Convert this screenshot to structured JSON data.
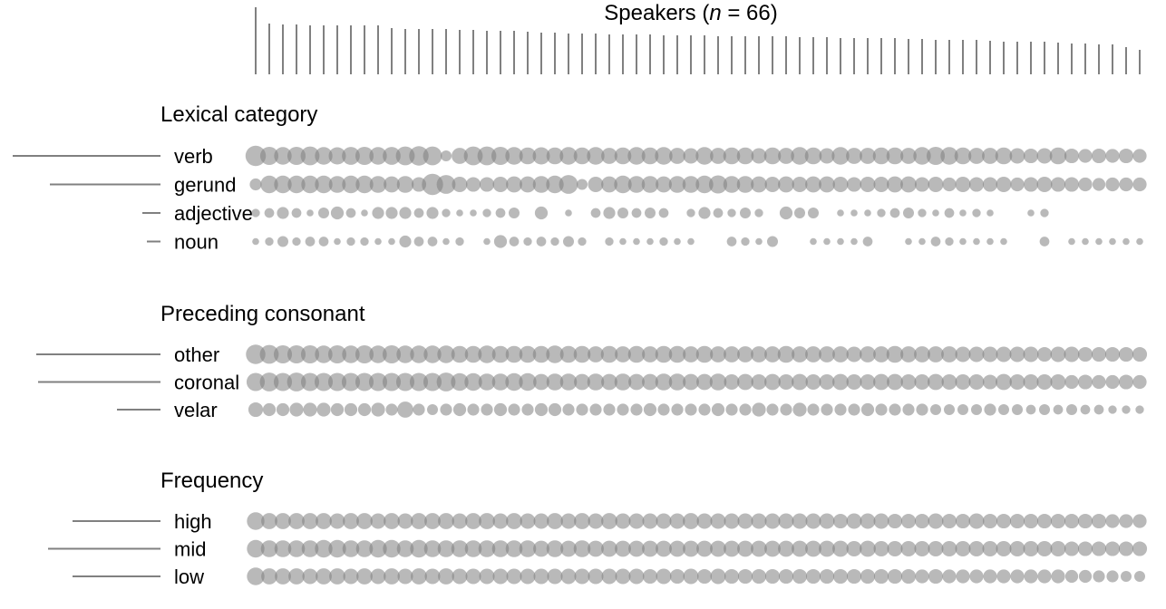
{
  "chart_data": {
    "type": "bubble-matrix",
    "title": "Speakers (n = 66)",
    "speaker_count": 66,
    "speaker_token_counts": [
      74,
      56,
      55,
      55,
      54,
      54,
      54,
      54,
      54,
      54,
      51,
      50,
      50,
      50,
      50,
      49,
      49,
      48,
      48,
      48,
      47,
      46,
      46,
      45,
      45,
      45,
      44,
      44,
      44,
      44,
      43,
      43,
      43,
      43,
      42,
      42,
      42,
      42,
      42,
      42,
      41,
      41,
      41,
      40,
      40,
      40,
      40,
      40,
      39,
      39,
      38,
      38,
      38,
      38,
      37,
      36,
      36,
      36,
      36,
      35,
      34,
      34,
      33,
      33,
      30,
      27
    ],
    "groups": [
      {
        "name": "Lexical category",
        "levels": [
          {
            "label": "verb",
            "total": 163,
            "values": [
              0.35,
              0.28,
              0.26,
              0.28,
              0.3,
              0.26,
              0.25,
              0.27,
              0.28,
              0.26,
              0.27,
              0.3,
              0.32,
              0.3,
              0.1,
              0.22,
              0.3,
              0.3,
              0.28,
              0.26,
              0.24,
              0.25,
              0.24,
              0.26,
              0.24,
              0.26,
              0.22,
              0.24,
              0.26,
              0.24,
              0.26,
              0.22,
              0.2,
              0.26,
              0.22,
              0.24,
              0.24,
              0.2,
              0.24,
              0.22,
              0.26,
              0.24,
              0.2,
              0.26,
              0.22,
              0.22,
              0.24,
              0.24,
              0.22,
              0.26,
              0.28,
              0.26,
              0.24,
              0.22,
              0.22,
              0.24,
              0.2,
              0.18,
              0.2,
              0.24,
              0.18,
              0.16,
              0.18,
              0.16,
              0.18,
              0.16
            ]
          },
          {
            "label": "gerund",
            "total": 122,
            "values": [
              0.12,
              0.26,
              0.26,
              0.26,
              0.26,
              0.26,
              0.24,
              0.26,
              0.26,
              0.24,
              0.22,
              0.24,
              0.18,
              0.38,
              0.3,
              0.2,
              0.18,
              0.18,
              0.2,
              0.22,
              0.22,
              0.24,
              0.26,
              0.3,
              0.1,
              0.2,
              0.22,
              0.26,
              0.24,
              0.24,
              0.22,
              0.24,
              0.24,
              0.26,
              0.28,
              0.24,
              0.24,
              0.22,
              0.2,
              0.22,
              0.2,
              0.22,
              0.22,
              0.2,
              0.18,
              0.2,
              0.2,
              0.22,
              0.22,
              0.18,
              0.2,
              0.16,
              0.2,
              0.18,
              0.18,
              0.2,
              0.16,
              0.18,
              0.2,
              0.18,
              0.18,
              0.16,
              0.14,
              0.16,
              0.16,
              0.16
            ]
          },
          {
            "label": "adjective",
            "total": 20,
            "values": [
              0.06,
              0.08,
              0.12,
              0.08,
              0.04,
              0.1,
              0.14,
              0.08,
              0.04,
              0.12,
              0.12,
              0.12,
              0.08,
              0.12,
              0.06,
              0.04,
              0.04,
              0.06,
              0.08,
              0.1,
              0.0,
              0.14,
              0.0,
              0.04,
              0.0,
              0.08,
              0.12,
              0.1,
              0.08,
              0.1,
              0.08,
              0.0,
              0.06,
              0.12,
              0.08,
              0.06,
              0.1,
              0.06,
              0.0,
              0.14,
              0.1,
              0.1,
              0.0,
              0.04,
              0.04,
              0.04,
              0.06,
              0.08,
              0.1,
              0.06,
              0.04,
              0.08,
              0.04,
              0.06,
              0.04,
              0.0,
              0.0,
              0.04,
              0.06,
              0.0,
              0.0,
              0.0,
              0.0,
              0.0,
              0.0,
              0.0
            ]
          },
          {
            "label": "noun",
            "total": 15,
            "values": [
              0.04,
              0.06,
              0.1,
              0.06,
              0.08,
              0.08,
              0.04,
              0.06,
              0.06,
              0.04,
              0.04,
              0.12,
              0.08,
              0.08,
              0.04,
              0.06,
              0.0,
              0.04,
              0.14,
              0.08,
              0.06,
              0.08,
              0.06,
              0.1,
              0.06,
              0.0,
              0.06,
              0.04,
              0.04,
              0.04,
              0.06,
              0.04,
              0.04,
              0.0,
              0.0,
              0.08,
              0.06,
              0.04,
              0.1,
              0.0,
              0.0,
              0.04,
              0.04,
              0.04,
              0.04,
              0.08,
              0.0,
              0.0,
              0.04,
              0.04,
              0.08,
              0.06,
              0.04,
              0.04,
              0.04,
              0.04,
              0.0,
              0.0,
              0.08,
              0.0,
              0.04,
              0.04,
              0.04,
              0.04,
              0.04,
              0.04
            ]
          }
        ]
      },
      {
        "name": "Preceding consonant",
        "levels": [
          {
            "label": "other",
            "total": 137,
            "values": [
              0.32,
              0.3,
              0.28,
              0.28,
              0.28,
              0.26,
              0.28,
              0.26,
              0.28,
              0.26,
              0.28,
              0.26,
              0.26,
              0.26,
              0.26,
              0.24,
              0.24,
              0.26,
              0.24,
              0.24,
              0.24,
              0.24,
              0.26,
              0.24,
              0.24,
              0.22,
              0.24,
              0.22,
              0.24,
              0.22,
              0.24,
              0.24,
              0.22,
              0.24,
              0.22,
              0.22,
              0.22,
              0.22,
              0.22,
              0.24,
              0.22,
              0.22,
              0.22,
              0.22,
              0.2,
              0.22,
              0.22,
              0.24,
              0.22,
              0.22,
              0.22,
              0.22,
              0.2,
              0.2,
              0.2,
              0.2,
              0.2,
              0.2,
              0.18,
              0.2,
              0.2,
              0.18,
              0.18,
              0.18,
              0.18,
              0.18
            ]
          },
          {
            "label": "coronal",
            "total": 135,
            "values": [
              0.28,
              0.3,
              0.28,
              0.3,
              0.28,
              0.28,
              0.28,
              0.28,
              0.28,
              0.28,
              0.28,
              0.28,
              0.28,
              0.28,
              0.3,
              0.26,
              0.26,
              0.24,
              0.24,
              0.26,
              0.26,
              0.22,
              0.24,
              0.24,
              0.22,
              0.24,
              0.22,
              0.24,
              0.22,
              0.22,
              0.24,
              0.24,
              0.22,
              0.22,
              0.24,
              0.2,
              0.22,
              0.2,
              0.22,
              0.2,
              0.22,
              0.2,
              0.2,
              0.22,
              0.2,
              0.2,
              0.22,
              0.22,
              0.2,
              0.2,
              0.22,
              0.2,
              0.2,
              0.2,
              0.18,
              0.22,
              0.2,
              0.2,
              0.2,
              0.2,
              0.16,
              0.18,
              0.16,
              0.16,
              0.18,
              0.16
            ]
          },
          {
            "label": "velar",
            "total": 48,
            "values": [
              0.18,
              0.14,
              0.14,
              0.16,
              0.16,
              0.16,
              0.14,
              0.14,
              0.14,
              0.16,
              0.12,
              0.22,
              0.12,
              0.1,
              0.12,
              0.14,
              0.12,
              0.12,
              0.14,
              0.12,
              0.12,
              0.14,
              0.14,
              0.12,
              0.12,
              0.12,
              0.12,
              0.12,
              0.12,
              0.14,
              0.12,
              0.12,
              0.12,
              0.12,
              0.14,
              0.12,
              0.12,
              0.16,
              0.12,
              0.12,
              0.16,
              0.12,
              0.12,
              0.12,
              0.12,
              0.14,
              0.12,
              0.12,
              0.12,
              0.12,
              0.1,
              0.1,
              0.1,
              0.1,
              0.12,
              0.1,
              0.1,
              0.08,
              0.1,
              0.08,
              0.1,
              0.08,
              0.08,
              0.06,
              0.06,
              0.06
            ]
          }
        ]
      },
      {
        "name": "Frequency",
        "levels": [
          {
            "label": "high",
            "total": 97,
            "values": [
              0.26,
              0.22,
              0.22,
              0.22,
              0.22,
              0.22,
              0.2,
              0.22,
              0.22,
              0.2,
              0.22,
              0.2,
              0.22,
              0.22,
              0.22,
              0.2,
              0.22,
              0.22,
              0.2,
              0.22,
              0.2,
              0.2,
              0.22,
              0.2,
              0.22,
              0.2,
              0.22,
              0.2,
              0.2,
              0.2,
              0.2,
              0.2,
              0.22,
              0.2,
              0.2,
              0.2,
              0.2,
              0.2,
              0.2,
              0.2,
              0.2,
              0.2,
              0.2,
              0.18,
              0.2,
              0.2,
              0.2,
              0.18,
              0.18,
              0.18,
              0.2,
              0.18,
              0.18,
              0.2,
              0.18,
              0.18,
              0.18,
              0.18,
              0.18,
              0.18,
              0.18,
              0.18,
              0.18,
              0.16,
              0.16,
              0.16
            ]
          },
          {
            "label": "mid",
            "total": 124,
            "values": [
              0.26,
              0.24,
              0.24,
              0.24,
              0.24,
              0.26,
              0.26,
              0.24,
              0.24,
              0.26,
              0.26,
              0.24,
              0.26,
              0.24,
              0.24,
              0.24,
              0.24,
              0.24,
              0.24,
              0.24,
              0.24,
              0.22,
              0.24,
              0.22,
              0.24,
              0.22,
              0.22,
              0.22,
              0.22,
              0.22,
              0.22,
              0.22,
              0.22,
              0.22,
              0.22,
              0.22,
              0.22,
              0.22,
              0.22,
              0.22,
              0.22,
              0.22,
              0.22,
              0.22,
              0.2,
              0.22,
              0.2,
              0.2,
              0.2,
              0.2,
              0.2,
              0.2,
              0.2,
              0.2,
              0.2,
              0.2,
              0.2,
              0.2,
              0.2,
              0.2,
              0.18,
              0.18,
              0.18,
              0.18,
              0.18,
              0.18
            ]
          },
          {
            "label": "low",
            "total": 97,
            "values": [
              0.26,
              0.22,
              0.22,
              0.22,
              0.2,
              0.22,
              0.22,
              0.2,
              0.22,
              0.2,
              0.22,
              0.2,
              0.22,
              0.2,
              0.22,
              0.2,
              0.2,
              0.2,
              0.2,
              0.2,
              0.2,
              0.2,
              0.2,
              0.2,
              0.2,
              0.2,
              0.2,
              0.2,
              0.2,
              0.18,
              0.2,
              0.18,
              0.2,
              0.18,
              0.2,
              0.18,
              0.18,
              0.18,
              0.18,
              0.18,
              0.18,
              0.18,
              0.18,
              0.18,
              0.18,
              0.18,
              0.18,
              0.18,
              0.18,
              0.16,
              0.18,
              0.16,
              0.16,
              0.16,
              0.16,
              0.16,
              0.16,
              0.16,
              0.16,
              0.16,
              0.14,
              0.14,
              0.12,
              0.12,
              0.1,
              0.1
            ]
          }
        ]
      }
    ],
    "colors": {
      "bubble": "#808080",
      "line": "#808080",
      "text": "#000000"
    }
  }
}
